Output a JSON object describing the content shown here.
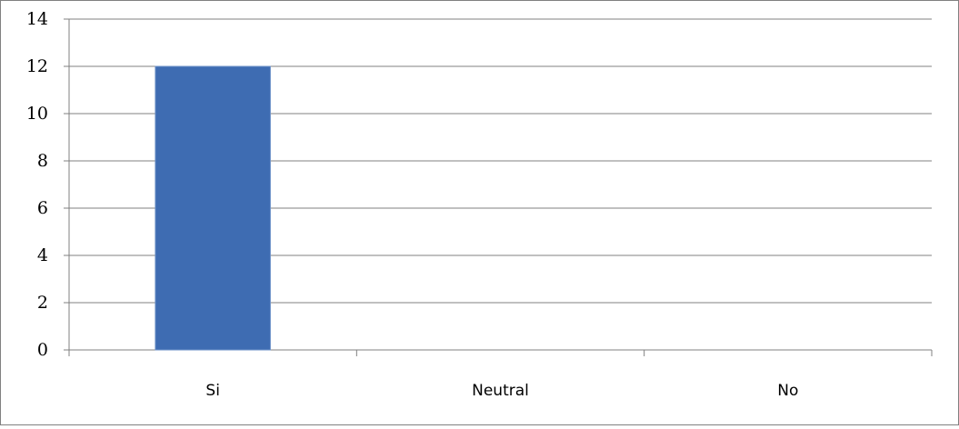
{
  "chart_data": {
    "type": "bar",
    "categories": [
      "Si",
      "Neutral",
      "No"
    ],
    "values": [
      12,
      0,
      0
    ],
    "ylim": [
      0,
      14
    ],
    "yticks": [
      0,
      2,
      4,
      6,
      8,
      10,
      12,
      14
    ],
    "grid": true,
    "legend": "none",
    "bar_color": "#3E6CB2",
    "grid_color": "#808080",
    "axis_color": "#808080"
  }
}
